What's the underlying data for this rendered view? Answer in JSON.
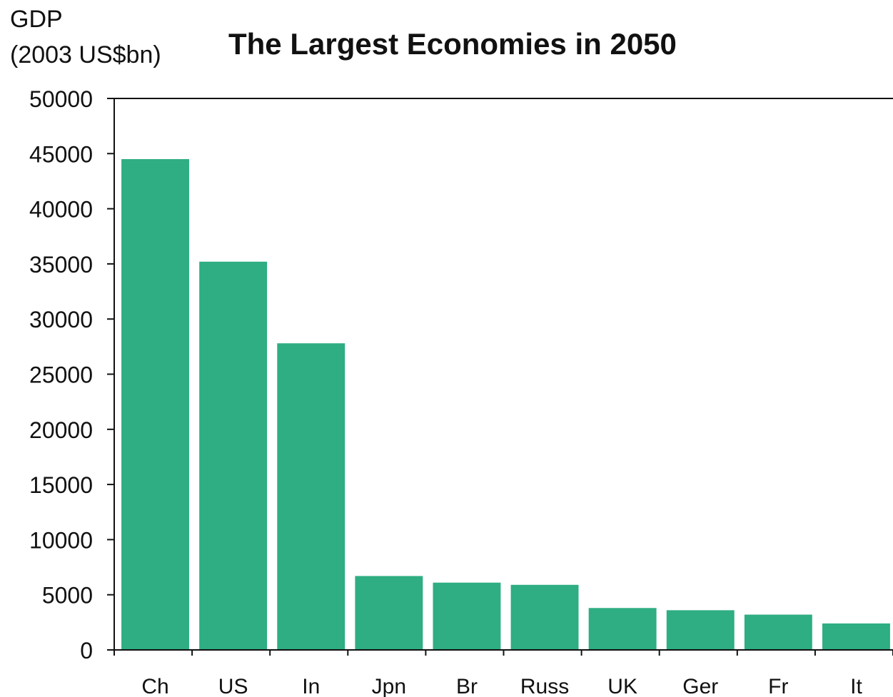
{
  "chart_data": {
    "type": "bar",
    "title": "The Largest Economies in 2050",
    "ylabel_line1": "GDP",
    "ylabel_line2": "(2003 US$bn)",
    "xlabel": "",
    "categories": [
      "Ch",
      "US",
      "In",
      "Jpn",
      "Br",
      "Russ",
      "UK",
      "Ger",
      "Fr",
      "It"
    ],
    "values": [
      44500,
      35200,
      27800,
      6700,
      6100,
      5900,
      3800,
      3600,
      3200,
      2400
    ],
    "ylim": [
      0,
      50000
    ],
    "yticks": [
      "50000",
      "45000",
      "40000",
      "35000",
      "30000",
      "25000",
      "20000",
      "15000",
      "10000",
      "5000",
      "0"
    ],
    "bar_color": "#2eae82",
    "grid": false,
    "legend": "none"
  }
}
